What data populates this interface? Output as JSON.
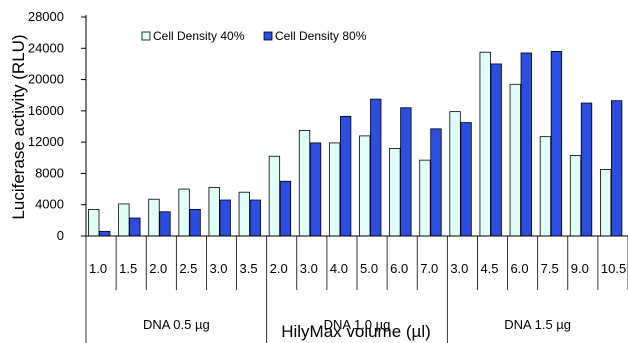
{
  "chart_data": {
    "type": "bar",
    "xlabel": "HilyMax volume (µl)",
    "ylabel": "Luciferase activity (RLU)",
    "ylim": [
      0,
      28000
    ],
    "yticks": [
      "0",
      "4000",
      "8000",
      "12000",
      "16000",
      "20000",
      "24000",
      "28000"
    ],
    "categories": [
      "1.0",
      "1.5",
      "2.0",
      "2.5",
      "3.0",
      "3.5",
      "2.0",
      "3.0",
      "4.0",
      "5.0",
      "6.0",
      "7.0",
      "3.0",
      "4.5",
      "6.0",
      "7.5",
      "9.0",
      "10.5"
    ],
    "groups": [
      {
        "label": "DNA 0.5 µg",
        "count": 6
      },
      {
        "label": "DNA 1.0 µg",
        "count": 6
      },
      {
        "label": "DNA 1.5 µg",
        "count": 6
      }
    ],
    "series": [
      {
        "name": "Cell Density 40%",
        "color": "#e0fff8",
        "values": [
          3400,
          4100,
          4700,
          6000,
          6200,
          5600,
          10200,
          13500,
          11900,
          12800,
          11200,
          9700,
          15900,
          23500,
          19400,
          12700,
          10300,
          8500
        ]
      },
      {
        "name": "Cell Density 80%",
        "color": "#2b4de0",
        "values": [
          600,
          2300,
          3100,
          3400,
          4600,
          4600,
          7000,
          11900,
          15300,
          17500,
          16400,
          13700,
          14500,
          22000,
          23400,
          23600,
          17000,
          17300
        ]
      }
    ],
    "legend": "top-left",
    "grid": false
  }
}
